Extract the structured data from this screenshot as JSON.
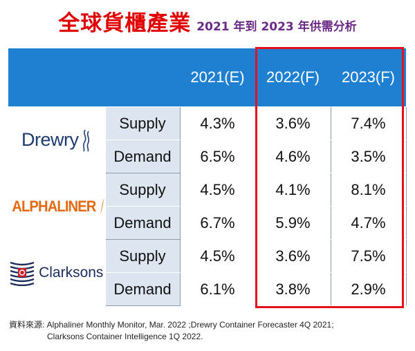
{
  "title": {
    "main": "全球貨櫃產業",
    "subtitle": "2021 年到 2023 年供需分析"
  },
  "chart_data": {
    "type": "table",
    "columns": [
      "2021(E)",
      "2022(F)",
      "2023(F)"
    ],
    "sources": [
      {
        "name": "Drewry",
        "rows": [
          {
            "label": "Supply",
            "values": [
              "4.3%",
              "3.6%",
              "7.4%"
            ]
          },
          {
            "label": "Demand",
            "values": [
              "6.5%",
              "4.6%",
              "3.5%"
            ]
          }
        ]
      },
      {
        "name": "ALPHALINER",
        "rows": [
          {
            "label": "Supply",
            "values": [
              "4.5%",
              "4.1%",
              "8.1%"
            ]
          },
          {
            "label": "Demand",
            "values": [
              "6.7%",
              "5.9%",
              "4.7%"
            ]
          }
        ]
      },
      {
        "name": "Clarksons",
        "rows": [
          {
            "label": "Supply",
            "values": [
              "4.5%",
              "3.6%",
              "7.5%"
            ]
          },
          {
            "label": "Demand",
            "values": [
              "6.1%",
              "3.8%",
              "2.9%"
            ]
          }
        ]
      }
    ],
    "highlighted_columns": [
      "2022(F)",
      "2023(F)"
    ]
  },
  "source_note": {
    "line1": "資料來源: Alphaliner Monthly Monitor, Mar. 2022 ;Drewry Container Forecaster 4Q 2021;",
    "line2": "Clarksons Container Intelligence 1Q 2022."
  },
  "colors": {
    "title_red": "#e00000",
    "subtitle_purple": "#6b2a85",
    "header_blue": "#1f7fd0",
    "label_bg": "#dde6f0",
    "highlight_red": "#e8101c",
    "alphaliner_orange": "#e36a12",
    "drewry_navy": "#1b3a6e"
  }
}
